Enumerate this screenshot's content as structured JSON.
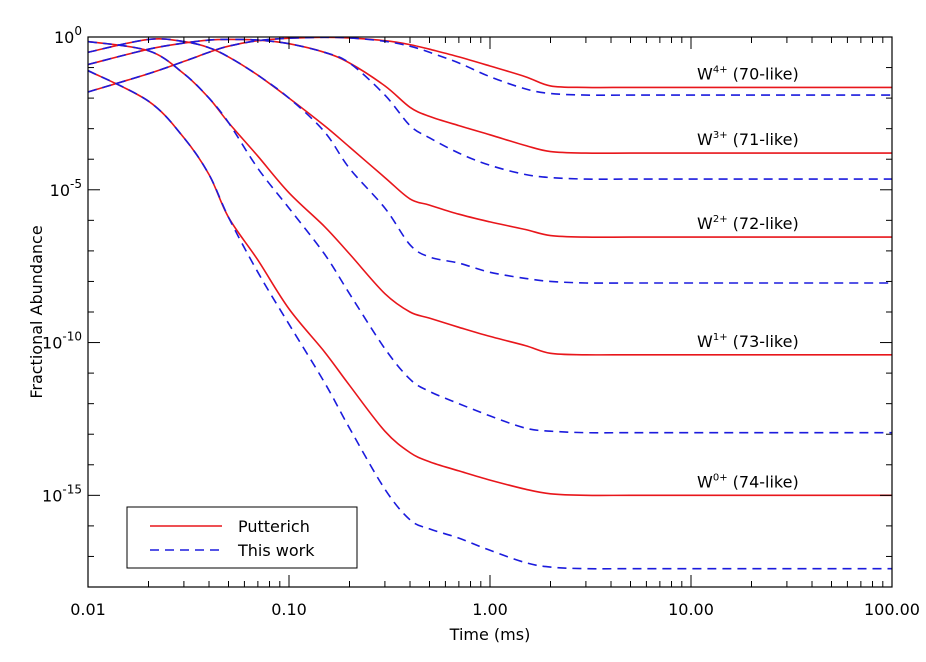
{
  "chart_data": {
    "type": "line",
    "xlabel": "Time (ms)",
    "ylabel": "Fractional Abundance",
    "xscale": "log",
    "yscale": "log",
    "xlim": [
      0.01,
      100
    ],
    "ylim": [
      1e-18,
      1
    ],
    "x_ticks": [
      0.01,
      0.1,
      1,
      10,
      100
    ],
    "x_tick_labels": [
      "0.01",
      "0.10",
      "1.00",
      "10.00",
      "100.00"
    ],
    "y_ticks": [
      1,
      1e-05,
      1e-10,
      1e-15
    ],
    "y_tick_labels": [
      {
        "base": "10",
        "exp": "0"
      },
      {
        "base": "10",
        "exp": "-5"
      },
      {
        "base": "10",
        "exp": "-10"
      },
      {
        "base": "10",
        "exp": "-15"
      }
    ],
    "grid": false,
    "legend_position": "bottom-left",
    "legend": [
      {
        "label": "Putterich",
        "color": "#e8161b",
        "dash": "solid"
      },
      {
        "label": "This work",
        "color": "#1b1bdd",
        "dash": "dashed"
      }
    ],
    "annotations": [
      {
        "ion": "W",
        "charge": "4+",
        "suffix": " (70-like)"
      },
      {
        "ion": "W",
        "charge": "3+",
        "suffix": " (71-like)"
      },
      {
        "ion": "W",
        "charge": "2+",
        "suffix": " (72-like)"
      },
      {
        "ion": "W",
        "charge": "1+",
        "suffix": " (73-like)"
      },
      {
        "ion": "W",
        "charge": "0+",
        "suffix": " (74-like)"
      }
    ],
    "x": [
      0.01,
      0.02,
      0.03,
      0.04,
      0.05,
      0.07,
      0.1,
      0.15,
      0.2,
      0.3,
      0.4,
      0.5,
      0.7,
      1.0,
      1.5,
      2.0,
      3.0,
      5.0,
      10.0,
      100.0
    ],
    "series": [
      {
        "legend": 0,
        "annotation": 0,
        "log10_y": [
          -1.8,
          -1.2,
          -0.8,
          -0.5,
          -0.3,
          -0.12,
          -0.04,
          -0.01,
          -0.03,
          -0.12,
          -0.25,
          -0.4,
          -0.65,
          -0.95,
          -1.3,
          -1.6,
          -1.65,
          -1.65,
          -1.65,
          -1.65
        ]
      },
      {
        "legend": 0,
        "annotation": 1,
        "log10_y": [
          -0.9,
          -0.4,
          -0.2,
          -0.1,
          -0.08,
          -0.1,
          -0.22,
          -0.5,
          -0.85,
          -1.6,
          -2.3,
          -2.6,
          -2.9,
          -3.2,
          -3.55,
          -3.75,
          -3.8,
          -3.8,
          -3.8,
          -3.8
        ]
      },
      {
        "legend": 0,
        "annotation": 2,
        "log10_y": [
          -0.5,
          -0.08,
          -0.15,
          -0.35,
          -0.65,
          -1.25,
          -2.0,
          -2.9,
          -3.6,
          -4.6,
          -5.3,
          -5.5,
          -5.8,
          -6.05,
          -6.3,
          -6.5,
          -6.55,
          -6.55,
          -6.55,
          -6.55
        ]
      },
      {
        "legend": 0,
        "annotation": 3,
        "log10_y": [
          -0.15,
          -0.45,
          -1.2,
          -2.0,
          -2.8,
          -3.9,
          -5.1,
          -6.2,
          -7.1,
          -8.4,
          -9.0,
          -9.2,
          -9.5,
          -9.8,
          -10.1,
          -10.35,
          -10.4,
          -10.4,
          -10.4,
          -10.4
        ]
      },
      {
        "legend": 0,
        "annotation": 4,
        "log10_y": [
          -1.1,
          -2.1,
          -3.3,
          -4.5,
          -5.9,
          -7.3,
          -8.9,
          -10.3,
          -11.4,
          -12.9,
          -13.6,
          -13.9,
          -14.2,
          -14.5,
          -14.8,
          -14.95,
          -15.0,
          -15.0,
          -15.0,
          -15.0
        ]
      },
      {
        "legend": 1,
        "annotation": 0,
        "log10_y": [
          -1.8,
          -1.2,
          -0.8,
          -0.5,
          -0.3,
          -0.12,
          -0.04,
          -0.01,
          -0.03,
          -0.14,
          -0.3,
          -0.5,
          -0.85,
          -1.3,
          -1.7,
          -1.85,
          -1.9,
          -1.9,
          -1.9,
          -1.9
        ]
      },
      {
        "legend": 1,
        "annotation": 1,
        "log10_y": [
          -0.9,
          -0.4,
          -0.2,
          -0.1,
          -0.08,
          -0.1,
          -0.22,
          -0.5,
          -0.85,
          -1.9,
          -2.9,
          -3.3,
          -3.8,
          -4.2,
          -4.5,
          -4.6,
          -4.65,
          -4.65,
          -4.65,
          -4.65
        ]
      },
      {
        "legend": 1,
        "annotation": 2,
        "log10_y": [
          -0.5,
          -0.08,
          -0.15,
          -0.35,
          -0.65,
          -1.25,
          -2.0,
          -3.1,
          -4.3,
          -5.6,
          -6.8,
          -7.2,
          -7.4,
          -7.7,
          -7.9,
          -8.0,
          -8.05,
          -8.05,
          -8.05,
          -8.05
        ]
      },
      {
        "legend": 1,
        "annotation": 3,
        "log10_y": [
          -0.15,
          -0.45,
          -1.2,
          -2.0,
          -2.8,
          -4.3,
          -5.6,
          -7.1,
          -8.4,
          -10.2,
          -11.2,
          -11.6,
          -12.0,
          -12.4,
          -12.8,
          -12.9,
          -12.95,
          -12.95,
          -12.95,
          -12.95
        ]
      },
      {
        "legend": 1,
        "annotation": 4,
        "log10_y": [
          -1.1,
          -2.1,
          -3.3,
          -4.5,
          -5.9,
          -7.7,
          -9.4,
          -11.3,
          -12.8,
          -14.8,
          -15.8,
          -16.1,
          -16.4,
          -16.8,
          -17.2,
          -17.35,
          -17.4,
          -17.4,
          -17.4,
          -17.4
        ]
      }
    ]
  }
}
